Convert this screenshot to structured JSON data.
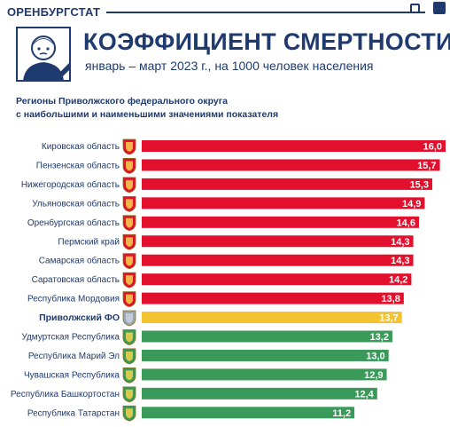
{
  "header": {
    "brand": "ОРЕНБУРГСТАТ",
    "title": "КОЭФФИЦИЕНТ СМЕРТНОСТИ",
    "subtitle": "январь – март 2023 г., на 1000 человек населения"
  },
  "caption": {
    "line1": "Регионы Приволжского федерального округа",
    "line2": "с наибольшими и наименьшими значениями показателя"
  },
  "colors": {
    "high": "#e3102d",
    "federal": "#f4c430",
    "low": "#3a9a5a",
    "text": "#1f3a6e"
  },
  "icons": [
    "person-mourning-icon",
    "region-coat-of-arms-icon"
  ],
  "chart_data": {
    "type": "bar",
    "orientation": "horizontal",
    "title": "",
    "categories": [
      "Кировская область",
      "Пензенская область",
      "Нижегородская область",
      "Ульяновская область",
      "Оренбургская область",
      "Пермский край",
      "Самарская область",
      "Саратовская область",
      "Республика Мордовия",
      "Приволжский ФО",
      "Удмуртская Республика",
      "Республика Марий Эл",
      "Чувашская Республика",
      "Республика Башкортостан",
      "Республика Татарстан"
    ],
    "values": [
      16.0,
      15.7,
      15.3,
      14.9,
      14.6,
      14.3,
      14.3,
      14.2,
      13.8,
      13.7,
      13.2,
      13.0,
      12.9,
      12.4,
      11.2
    ],
    "value_labels": [
      "16,0",
      "15,7",
      "15,3",
      "14,9",
      "14,6",
      "14,3",
      "14,3",
      "14,2",
      "13,8",
      "13,7",
      "13,2",
      "13,0",
      "12,9",
      "12,4",
      "11,2"
    ],
    "groups": [
      "high",
      "high",
      "high",
      "high",
      "high",
      "high",
      "high",
      "high",
      "high",
      "federal",
      "low",
      "low",
      "low",
      "low",
      "low"
    ],
    "highlight_category": "Приволжский ФО",
    "xlim": [
      0,
      16.0
    ],
    "grid": false,
    "legend": "none"
  }
}
